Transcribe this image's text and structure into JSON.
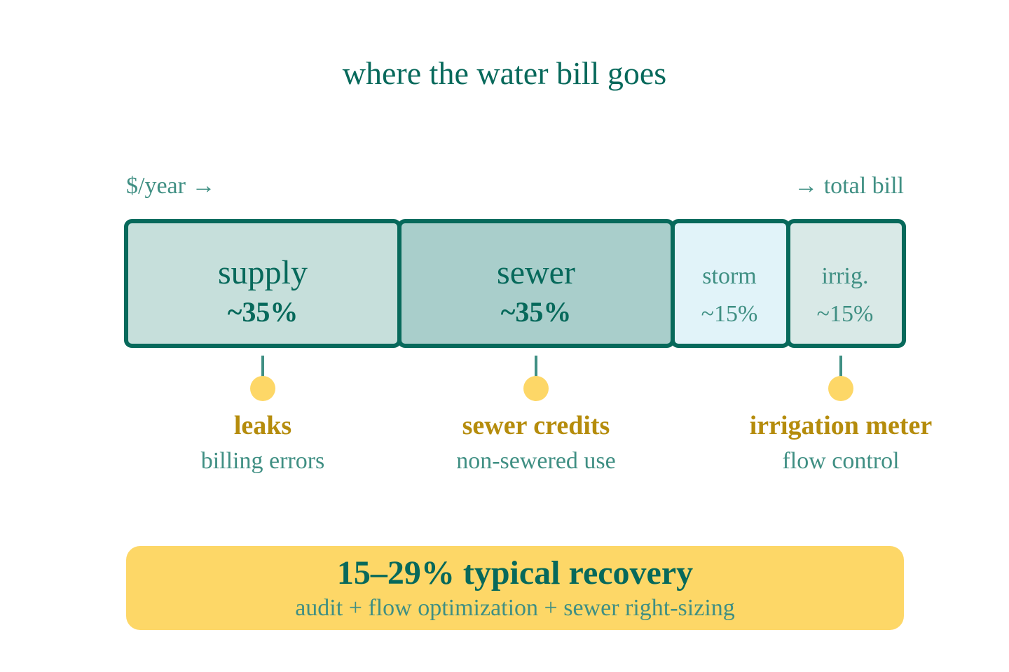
{
  "title": "where the water bill goes",
  "axis": {
    "start": "$/year →",
    "end": "→ total bill"
  },
  "segments": [
    {
      "label": "supply",
      "share": "~35%"
    },
    {
      "label": "sewer",
      "share": "~35%"
    },
    {
      "label": "storm",
      "share": "~15%"
    },
    {
      "label": "irrig.",
      "share": "~15%"
    }
  ],
  "callouts": [
    {
      "title": "leaks",
      "subtitle": "billing errors"
    },
    {
      "title": "sewer credits",
      "subtitle": "non-sewered use"
    },
    {
      "title": "irrigation meter",
      "subtitle": "flow control"
    }
  ],
  "summary": {
    "title": "15–29% typical recovery",
    "subtitle": "audit + flow optimization + sewer right-sizing"
  }
}
